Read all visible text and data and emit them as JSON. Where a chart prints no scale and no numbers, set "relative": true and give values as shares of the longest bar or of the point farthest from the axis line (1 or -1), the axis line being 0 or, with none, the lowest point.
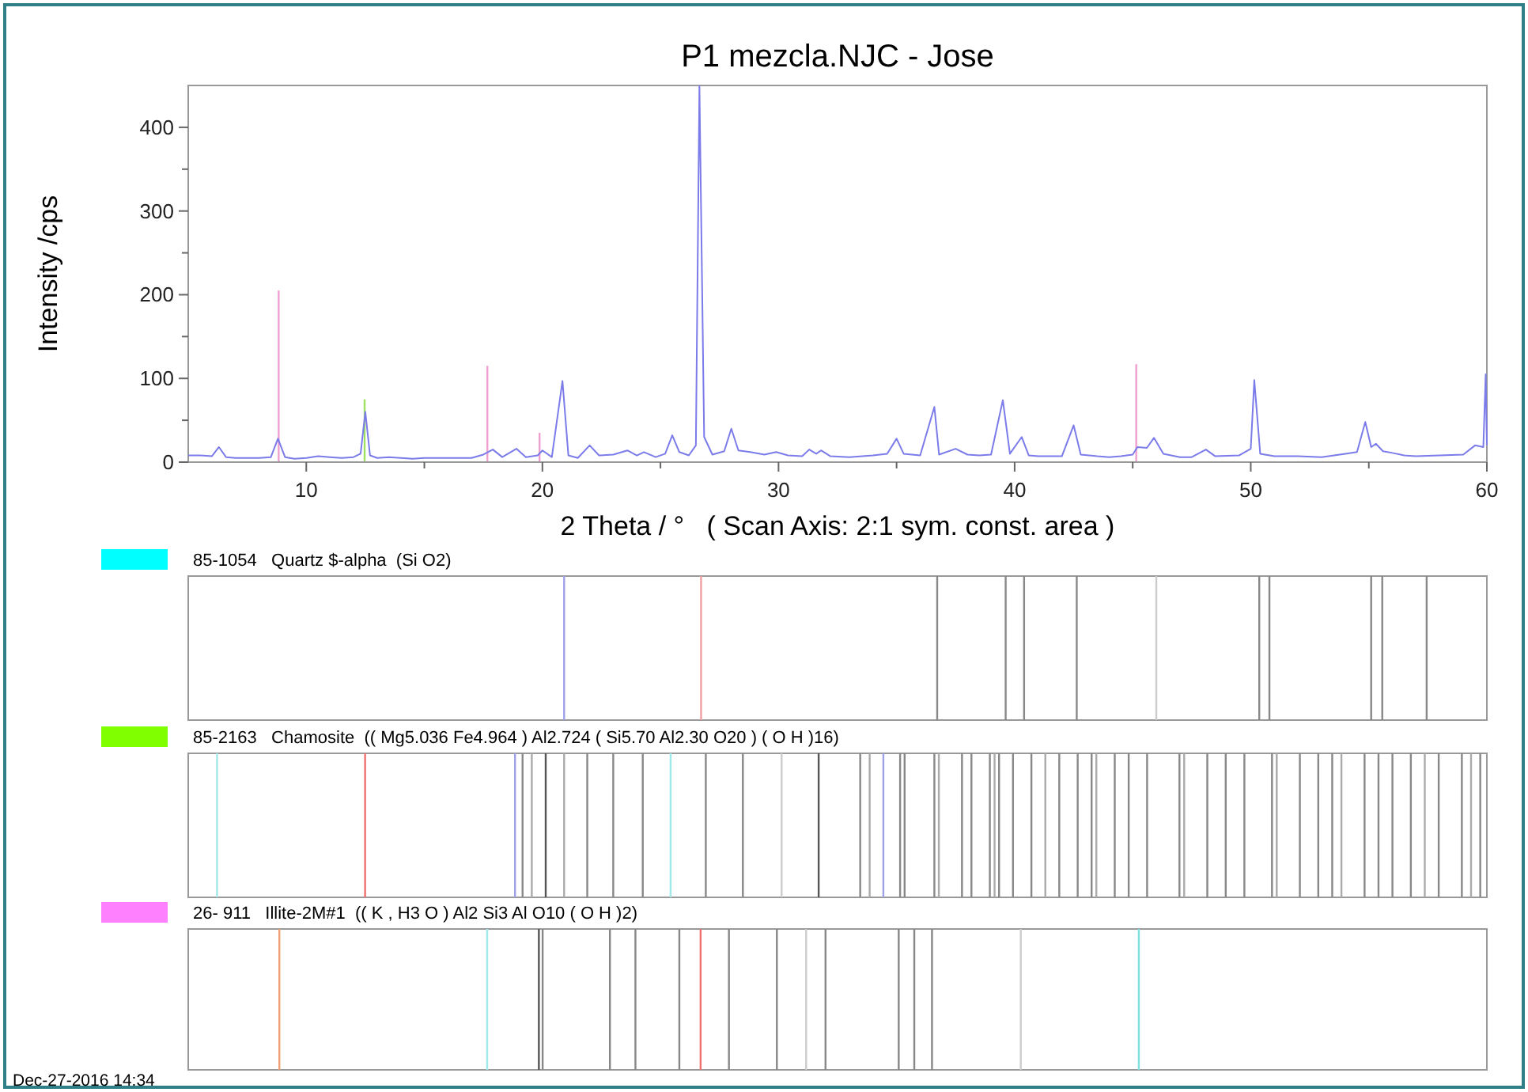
{
  "chart_data": [
    {
      "type": "line",
      "title": "P1 mezcla.NJC - Jose",
      "xlabel": "2 Theta / °   ( Scan Axis: 2:1 sym. const. area )",
      "ylabel": "Intensity /cps",
      "xlim": [
        5,
        60
      ],
      "ylim": [
        0,
        450
      ],
      "xticks": [
        {
          "value": 10,
          "label": "10"
        },
        {
          "value": 15,
          "label": null
        },
        {
          "value": 20,
          "label": "20"
        },
        {
          "value": 25,
          "label": null
        },
        {
          "value": 30,
          "label": "30"
        },
        {
          "value": 35,
          "label": null
        },
        {
          "value": 40,
          "label": "40"
        },
        {
          "value": 45,
          "label": null
        },
        {
          "value": 50,
          "label": "50"
        },
        {
          "value": 55,
          "label": null
        },
        {
          "value": 60,
          "label": "60"
        }
      ],
      "yticks": [
        0,
        {
          "value": 50,
          "label": null
        },
        100,
        {
          "value": 150,
          "label": null
        },
        200,
        {
          "value": 250,
          "label": null
        },
        300,
        {
          "value": 350,
          "label": null
        },
        400
      ],
      "series": [
        {
          "type": "bar",
          "x": [
            8.83,
            12.47,
            17.67,
            19.88,
            45.15
          ],
          "values": [
            205,
            75,
            115,
            35,
            117
          ],
          "colors": [
            "#f0a0d0",
            "#a0e060",
            "#f0a0d0",
            "#f0a0d0",
            "#f0a0d0"
          ]
        },
        {
          "color": "#7b7bea",
          "x": [
            5,
            5.5,
            6,
            6.3,
            6.6,
            7,
            7.5,
            8,
            8.5,
            8.8,
            9.1,
            9.5,
            10,
            10.5,
            11,
            11.5,
            12,
            12.3,
            12.5,
            12.7,
            13,
            13.5,
            14,
            14.5,
            15,
            16,
            17,
            17.5,
            17.9,
            18.3,
            18.9,
            19.3,
            19.8,
            20,
            20.4,
            20.85,
            21.1,
            21.5,
            22,
            22.4,
            23,
            23.6,
            24,
            24.3,
            24.8,
            25.2,
            25.5,
            25.8,
            26.2,
            26.5,
            26.65,
            26.85,
            27.2,
            27.7,
            28,
            28.3,
            28.8,
            29.4,
            29.9,
            30.4,
            31,
            31.3,
            31.6,
            31.8,
            32.2,
            33,
            34,
            34.6,
            35,
            35.3,
            36,
            36.6,
            36.8,
            37.5,
            38,
            38.5,
            39,
            39.5,
            39.8,
            40.3,
            40.6,
            41,
            42,
            42.5,
            42.8,
            43.5,
            44,
            44.5,
            45,
            45.2,
            45.6,
            45.9,
            46.3,
            47,
            47.5,
            48.1,
            48.5,
            49.5,
            50,
            50.15,
            50.4,
            51,
            52,
            53,
            54,
            54.5,
            54.85,
            55.1,
            55.3,
            55.6,
            56,
            56.5,
            57,
            58,
            59,
            59.5,
            59.85,
            59.95,
            60
          ],
          "values": [
            8,
            8,
            7,
            18,
            6,
            5,
            5,
            5,
            6,
            28,
            6,
            4,
            5,
            7,
            6,
            5,
            6,
            10,
            60,
            8,
            5,
            6,
            5,
            4,
            5,
            5,
            5,
            9,
            15,
            6,
            16,
            6,
            8,
            14,
            6,
            97,
            8,
            5,
            20,
            8,
            9,
            14,
            8,
            12,
            6,
            10,
            32,
            12,
            8,
            20,
            449,
            30,
            9,
            13,
            40,
            14,
            12,
            9,
            12,
            8,
            7,
            15,
            10,
            14,
            7,
            6,
            8,
            10,
            28,
            10,
            8,
            66,
            9,
            16,
            9,
            8,
            9,
            74,
            10,
            30,
            8,
            7,
            7,
            44,
            9,
            7,
            6,
            7,
            9,
            18,
            17,
            29,
            10,
            6,
            6,
            15,
            7,
            8,
            16,
            98,
            10,
            7,
            7,
            6,
            10,
            12,
            48,
            18,
            22,
            13,
            11,
            8,
            7,
            8,
            9,
            20,
            18,
            105,
            20
          ]
        }
      ]
    },
    {
      "type": "bar",
      "relative": true,
      "xlim": [
        5,
        60
      ],
      "legend": "top left",
      "series": [
        {
          "name": "85-1054   Quartz $-alpha  (Si O2)",
          "color": "#00ffff",
          "x": [
            20.92,
            26.72,
            36.72,
            39.62,
            40.4,
            42.63,
            46.0,
            50.36,
            50.79,
            55.1,
            55.57,
            57.45
          ],
          "values": [
            1,
            1,
            1,
            1,
            1,
            1,
            1,
            1,
            1,
            1,
            1,
            1
          ],
          "colors": [
            "#a0a0e8",
            "#f0a0a0",
            "#888888",
            "#888888",
            "#888888",
            "#888888",
            "#cccccc",
            "#888888",
            "#888888",
            "#888888",
            "#888888",
            "#888888"
          ]
        }
      ]
    },
    {
      "type": "bar",
      "relative": true,
      "xlim": [
        5,
        60
      ],
      "legend": "top left",
      "series": [
        {
          "name": "85-2163   Chamosite  (( Mg5.036 Fe4.964 ) Al2.724 ( Si5.70 Al2.30 O20 ) ( O H )16)",
          "color": "#80ff00",
          "x": [
            6.22,
            12.49,
            18.84,
            19.16,
            19.55,
            20.14,
            20.92,
            21.9,
            23.0,
            24.25,
            25.43,
            26.92,
            28.49,
            30.13,
            31.7,
            33.46,
            33.86,
            34.44,
            35.15,
            35.34,
            36.6,
            36.79,
            37.77,
            38.17,
            38.95,
            39.15,
            39.34,
            39.93,
            40.71,
            41.3,
            41.89,
            42.67,
            43.26,
            43.46,
            44.24,
            44.83,
            45.61,
            46.98,
            47.18,
            48.16,
            48.94,
            49.73,
            50.9,
            51.1,
            52.08,
            52.86,
            53.45,
            53.84,
            54.82,
            55.41,
            56.0,
            56.78,
            57.37,
            57.96,
            58.94,
            59.33,
            59.72
          ],
          "values": [
            1,
            1,
            1,
            1,
            1,
            1,
            1,
            1,
            1,
            1,
            1,
            1,
            1,
            1,
            1,
            1,
            1,
            1,
            1,
            1,
            1,
            1,
            1,
            1,
            1,
            1,
            1,
            1,
            1,
            1,
            1,
            1,
            1,
            1,
            1,
            1,
            1,
            1,
            1,
            1,
            1,
            1,
            1,
            1,
            1,
            1,
            1,
            1,
            1,
            1,
            1,
            1,
            1,
            1,
            1,
            1,
            1
          ],
          "colors": [
            "#a0e8e8",
            "#f07070",
            "#a0a0e8",
            "#888888",
            "#aaaaaa",
            "#555555",
            "#aaaaaa",
            "#888888",
            "#888888",
            "#888888",
            "#a0e8e8",
            "#888888",
            "#888888",
            "#cccccc",
            "#555555",
            "#888888",
            "#aaaaaa",
            "#a0a0e8",
            "#888888",
            "#888888",
            "#888888",
            "#aaaaaa",
            "#888888",
            "#888888",
            "#888888",
            "#aaaaaa",
            "#888888",
            "#888888",
            "#888888",
            "#aaaaaa",
            "#888888",
            "#888888",
            "#888888",
            "#aaaaaa",
            "#888888",
            "#888888",
            "#888888",
            "#888888",
            "#aaaaaa",
            "#888888",
            "#888888",
            "#888888",
            "#888888",
            "#aaaaaa",
            "#888888",
            "#888888",
            "#888888",
            "#aaaaaa",
            "#888888",
            "#888888",
            "#888888",
            "#888888",
            "#aaaaaa",
            "#888888",
            "#888888",
            "#aaaaaa",
            "#888888"
          ]
        }
      ]
    },
    {
      "type": "bar",
      "relative": true,
      "xlim": [
        5,
        60
      ],
      "legend": "top left",
      "annotations": [
        "Dec-27-2016 14:34"
      ],
      "series": [
        {
          "name": "26- 911   Illite-2M#1  (( K , H3 O ) Al2 Si3 Al O10 ( O H )2)",
          "color": "#ff80ff",
          "x": [
            8.86,
            17.66,
            19.85,
            20.01,
            22.86,
            23.94,
            25.8,
            26.7,
            27.9,
            29.93,
            31.17,
            31.99,
            35.09,
            35.75,
            36.5,
            40.26,
            45.26
          ],
          "values": [
            1,
            1,
            1,
            1,
            1,
            1,
            1,
            1,
            1,
            1,
            1,
            1,
            1,
            1,
            1,
            1,
            1
          ],
          "colors": [
            "#f0a070",
            "#a0e8e8",
            "#555555",
            "#888888",
            "#888888",
            "#888888",
            "#888888",
            "#f07070",
            "#888888",
            "#888888",
            "#cccccc",
            "#888888",
            "#888888",
            "#888888",
            "#888888",
            "#cccccc",
            "#80e0e0"
          ]
        }
      ]
    }
  ]
}
